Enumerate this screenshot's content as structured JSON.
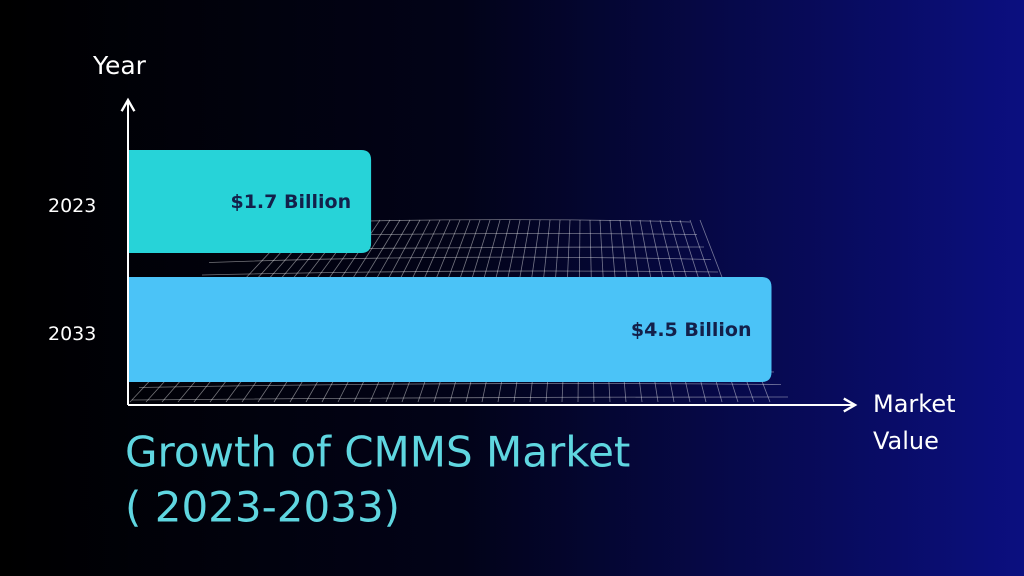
{
  "chart_data": {
    "type": "hbar",
    "title": "Growth of CMMS Market",
    "subtitle": "( 2023-2033)",
    "ylabel": "Year",
    "xlabel": "Market Value",
    "categories": [
      "2023",
      "2033"
    ],
    "values": [
      1.7,
      4.5
    ],
    "value_labels": [
      "$1.7 Billion",
      "$4.5 Billion"
    ],
    "colors": [
      "#27d3d8",
      "#4bc3f7"
    ],
    "xlim": [
      0,
      5
    ]
  }
}
